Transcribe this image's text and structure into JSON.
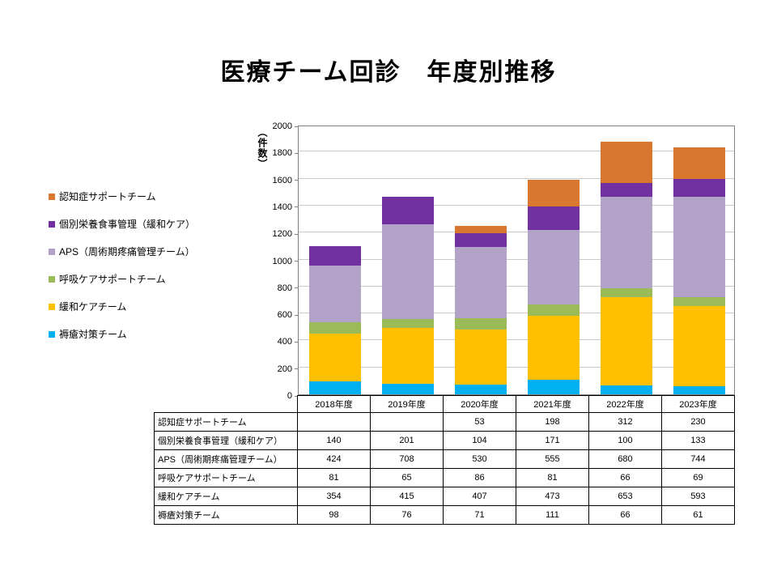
{
  "slide": {
    "title": "医療チーム回診　年度別推移"
  },
  "chart_data": {
    "type": "bar",
    "stacked": true,
    "title": "医療チーム回診　年度別推移",
    "xlabel": "",
    "ylabel": "（件数）",
    "ylim": [
      0,
      2000
    ],
    "yticks": [
      0,
      200,
      400,
      600,
      800,
      1000,
      1200,
      1400,
      1600,
      1800,
      2000
    ],
    "grid": true,
    "legend_position": "left",
    "categories": [
      "2018年度",
      "2019年度",
      "2020年度",
      "2021年度",
      "2022年度",
      "2023年度"
    ],
    "series": [
      {
        "name": "褥瘡対策チーム",
        "color": "#00B0F0",
        "values": [
          98,
          76,
          71,
          111,
          66,
          61
        ]
      },
      {
        "name": "緩和ケアチーム",
        "color": "#FFC000",
        "values": [
          354,
          415,
          407,
          473,
          653,
          593
        ]
      },
      {
        "name": "呼吸ケアサポートチーム",
        "color": "#9BBB59",
        "values": [
          81,
          65,
          86,
          81,
          66,
          69
        ]
      },
      {
        "name": "APS（周術期疼痛管理チーム）",
        "color": "#B3A2C7",
        "values": [
          424,
          708,
          530,
          555,
          680,
          744
        ]
      },
      {
        "name": "個別栄養食事管理（緩和ケア）",
        "color": "#7030A0",
        "values": [
          140,
          201,
          104,
          171,
          100,
          133
        ]
      },
      {
        "name": "認知症サポートチーム",
        "color": "#D9772E",
        "values": [
          null,
          null,
          53,
          198,
          312,
          230
        ]
      }
    ],
    "legend_order_top_to_bottom": [
      "認知症サポートチーム",
      "個別栄養食事管理（緩和ケア）",
      "APS（周術期疼痛管理チーム）",
      "呼吸ケアサポートチーム",
      "緩和ケアチーム",
      "褥瘡対策チーム"
    ]
  },
  "table": {
    "header": [
      "",
      "2018年度",
      "2019年度",
      "2020年度",
      "2021年度",
      "2022年度",
      "2023年度"
    ],
    "rows": [
      {
        "label": "認知症サポートチーム",
        "values": [
          "",
          "",
          "53",
          "198",
          "312",
          "230"
        ]
      },
      {
        "label": "個別栄養食事管理（緩和ケア）",
        "values": [
          "140",
          "201",
          "104",
          "171",
          "100",
          "133"
        ]
      },
      {
        "label": "APS（周術期疼痛管理チーム）",
        "values": [
          "424",
          "708",
          "530",
          "555",
          "680",
          "744"
        ]
      },
      {
        "label": "呼吸ケアサポートチーム",
        "values": [
          "81",
          "65",
          "86",
          "81",
          "66",
          "69"
        ]
      },
      {
        "label": "緩和ケアチーム",
        "values": [
          "354",
          "415",
          "407",
          "473",
          "653",
          "593"
        ]
      },
      {
        "label": "褥瘡対策チーム",
        "values": [
          "98",
          "76",
          "71",
          "111",
          "66",
          "61"
        ]
      }
    ]
  }
}
